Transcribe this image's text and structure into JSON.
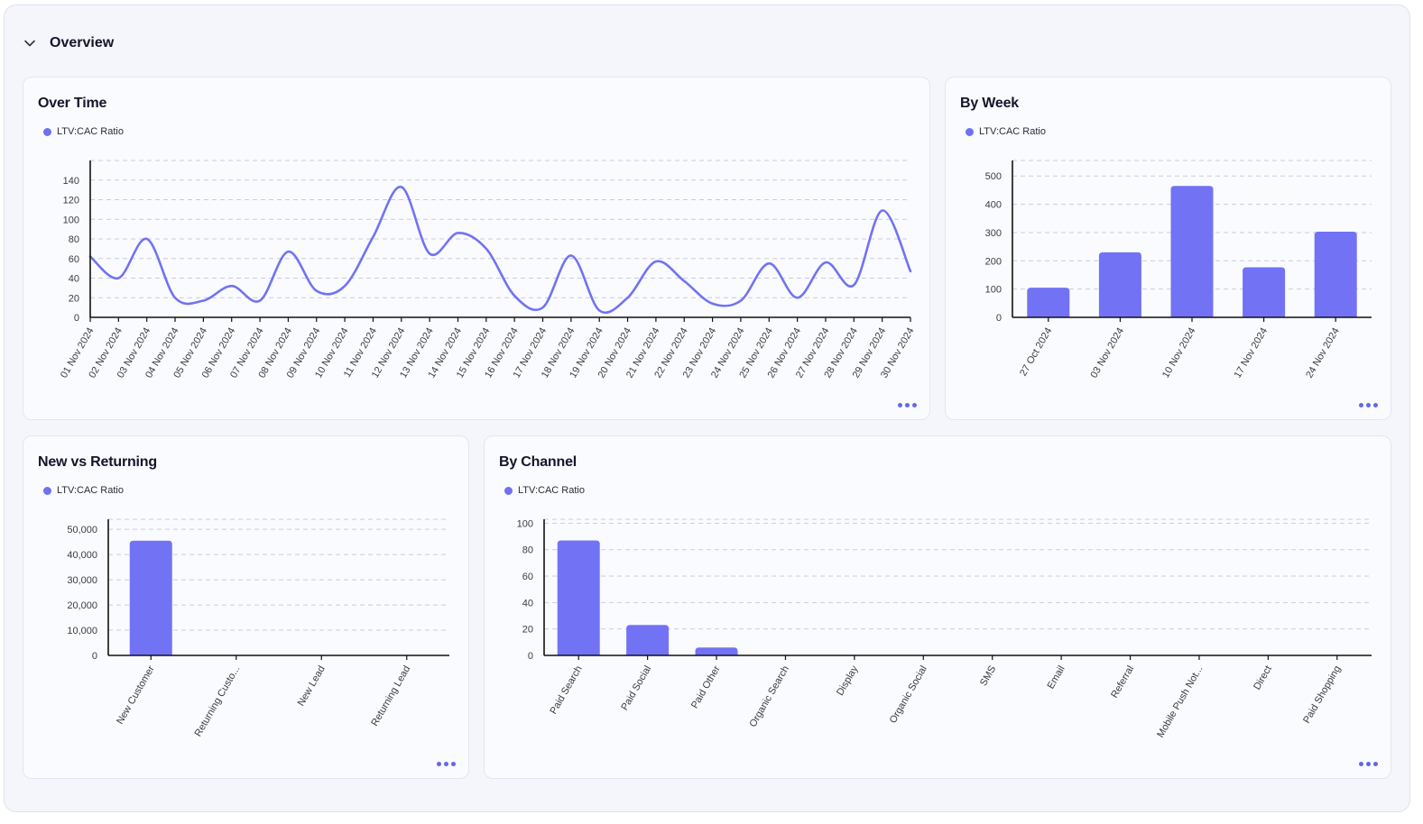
{
  "section": {
    "title": "Overview"
  },
  "colors": {
    "series": "#7272f4",
    "axis": "#111111",
    "grid": "#c9cbe0"
  },
  "cards": {
    "over_time": {
      "title": "Over Time",
      "legend": "LTV:CAC Ratio"
    },
    "by_week": {
      "title": "By Week",
      "legend": "LTV:CAC Ratio"
    },
    "new_vs_returning": {
      "title": "New vs Returning",
      "legend": "LTV:CAC Ratio"
    },
    "by_channel": {
      "title": "By Channel",
      "legend": "LTV:CAC Ratio"
    }
  },
  "chart_data": [
    {
      "id": "over_time",
      "type": "line",
      "title": "Over Time",
      "series_name": "LTV:CAC Ratio",
      "categories": [
        "01 Nov 2024",
        "02 Nov 2024",
        "03 Nov 2024",
        "04 Nov 2024",
        "05 Nov 2024",
        "06 Nov 2024",
        "07 Nov 2024",
        "08 Nov 2024",
        "09 Nov 2024",
        "10 Nov 2024",
        "11 Nov 2024",
        "12 Nov 2024",
        "13 Nov 2024",
        "14 Nov 2024",
        "15 Nov 2024",
        "16 Nov 2024",
        "17 Nov 2024",
        "18 Nov 2024",
        "19 Nov 2024",
        "20 Nov 2024",
        "21 Nov 2024",
        "22 Nov 2024",
        "23 Nov 2024",
        "24 Nov 2024",
        "25 Nov 2024",
        "26 Nov 2024",
        "27 Nov 2024",
        "28 Nov 2024",
        "29 Nov 2024",
        "30 Nov 2024"
      ],
      "values": [
        62,
        40,
        80,
        20,
        17,
        32,
        17,
        67,
        27,
        32,
        82,
        133,
        65,
        86,
        70,
        22,
        10,
        63,
        7,
        20,
        57,
        37,
        14,
        17,
        55,
        20,
        56,
        33,
        109,
        47
      ],
      "yticks": [
        0,
        20,
        40,
        60,
        80,
        100,
        120,
        140
      ],
      "ylim": [
        0,
        160
      ]
    },
    {
      "id": "by_week",
      "type": "bar",
      "title": "By Week",
      "series_name": "LTV:CAC Ratio",
      "categories": [
        "27 Oct 2024",
        "03 Nov 2024",
        "10 Nov 2024",
        "17 Nov 2024",
        "24 Nov 2024"
      ],
      "values": [
        105,
        230,
        465,
        177,
        303
      ],
      "yticks": [
        0,
        100,
        200,
        300,
        400,
        500
      ],
      "ylim": [
        0,
        555
      ]
    },
    {
      "id": "new_vs_returning",
      "type": "bar",
      "title": "New vs Returning",
      "series_name": "LTV:CAC Ratio",
      "categories": [
        "New Customer",
        "Returning Custo...",
        "New Lead",
        "Returning Lead"
      ],
      "values": [
        45500,
        0,
        0,
        0
      ],
      "yticks": [
        0,
        10000,
        20000,
        30000,
        40000,
        50000
      ],
      "ytick_labels": [
        "0",
        "10,000",
        "20,000",
        "30,000",
        "40,000",
        "50,000"
      ],
      "ylim": [
        0,
        54000
      ]
    },
    {
      "id": "by_channel",
      "type": "bar",
      "title": "By Channel",
      "series_name": "LTV:CAC Ratio",
      "categories": [
        "Paid Search",
        "Paid Social",
        "Paid Other",
        "Organic Search",
        "Display",
        "Organic Social",
        "SMS",
        "Email",
        "Referral",
        "Mobile Push Not...",
        "Direct",
        "Paid Shopping"
      ],
      "values": [
        87,
        23,
        6,
        0,
        0,
        0,
        0,
        0,
        0,
        0,
        0,
        0
      ],
      "yticks": [
        0,
        20,
        40,
        60,
        80,
        100
      ],
      "ylim": [
        0,
        103
      ]
    }
  ]
}
